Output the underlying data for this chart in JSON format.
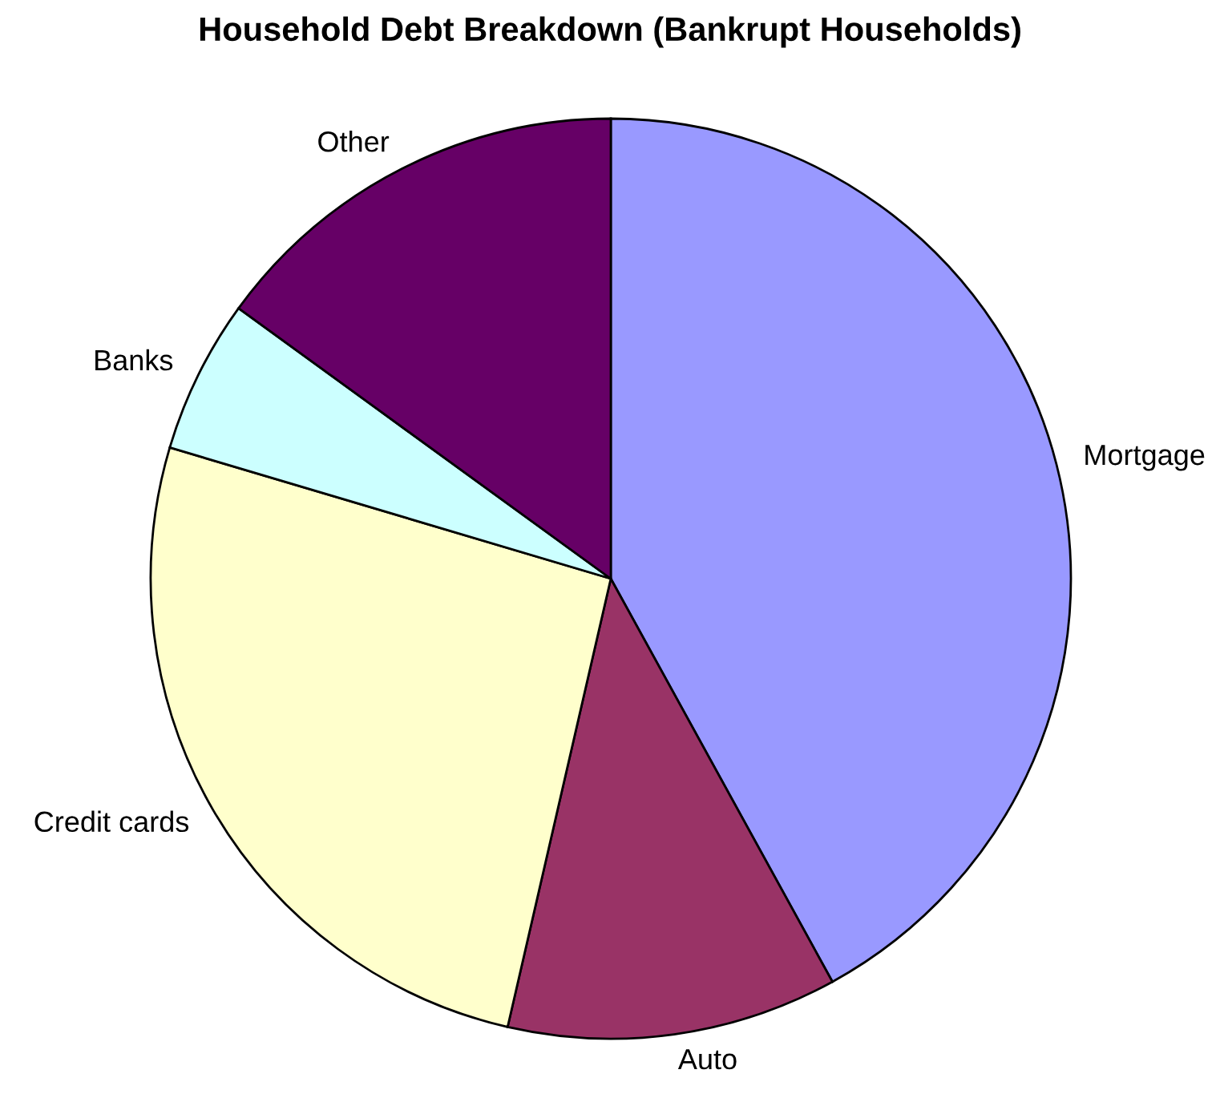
{
  "chart_data": {
    "type": "pie",
    "title": "Household Debt Breakdown (Bankrupt Households)",
    "categories": [
      "Mortgage",
      "Auto",
      "Credit cards",
      "Banks",
      "Other"
    ],
    "values": [
      42,
      11.6,
      26,
      5.4,
      15
    ],
    "colors": [
      "#9999ff",
      "#993366",
      "#ffffcc",
      "#ccffff",
      "#660066"
    ],
    "legend": false
  }
}
